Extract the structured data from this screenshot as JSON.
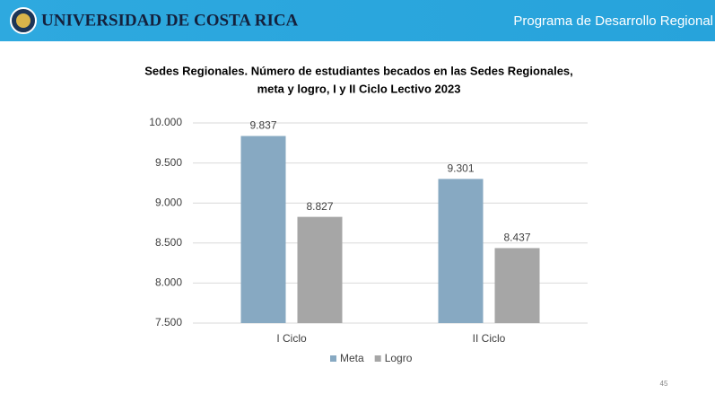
{
  "header": {
    "logo_text": "UNIVERSIDAD DE COSTA RICA",
    "program": "Programa de Desarrollo Regional"
  },
  "chart_data": {
    "type": "bar",
    "title": "Sedes Regionales. Número de estudiantes becados en las Sedes Regionales,",
    "subtitle": "meta y logro, I y II Ciclo Lectivo 2023",
    "categories": [
      "I Ciclo",
      "II Ciclo"
    ],
    "series": [
      {
        "name": "Meta",
        "color": "#87a9c2",
        "values": [
          9837,
          9301
        ],
        "value_labels": [
          "9.837",
          "9.301"
        ]
      },
      {
        "name": "Logro",
        "color": "#a6a6a6",
        "values": [
          8827,
          8437
        ],
        "value_labels": [
          "8.827",
          "8.437"
        ]
      }
    ],
    "ylim": [
      7500,
      10000
    ],
    "yticks": [
      {
        "value": 7500,
        "label": "7.500"
      },
      {
        "value": 8000,
        "label": "8.000"
      },
      {
        "value": 8500,
        "label": "8.500"
      },
      {
        "value": 9000,
        "label": "9.000"
      },
      {
        "value": 9500,
        "label": "9.500"
      },
      {
        "value": 10000,
        "label": "10.000"
      }
    ],
    "grid": true,
    "legend": "bottom"
  },
  "page_number": "45"
}
